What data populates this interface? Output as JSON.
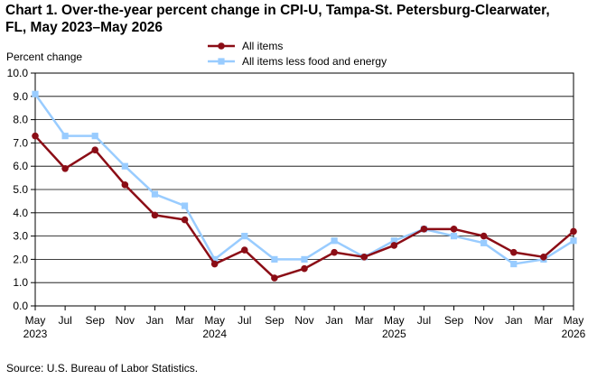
{
  "title_line1": "Chart 1. Over-the-year percent change in CPI-U, Tampa-St. Petersburg-Clearwater,",
  "title_line2": "FL, May 2023–May 2026",
  "source": "Source: U.S. Bureau of Labor Statistics.",
  "chart_data": {
    "type": "line",
    "title": "Chart 1. Over-the-year percent change in CPI-U, Tampa-St. Petersburg-Clearwater, FL, May 2023–May 2026",
    "ylabel": "Percent change",
    "xlabel": "",
    "ylim": [
      0,
      10
    ],
    "yticks": [
      "0.0",
      "1.0",
      "2.0",
      "3.0",
      "4.0",
      "5.0",
      "6.0",
      "7.0",
      "8.0",
      "9.0",
      "10.0"
    ],
    "grid": true,
    "legend_position": "top-center",
    "x": [
      "May 2023",
      "Jul 2023",
      "Sep 2023",
      "Nov 2023",
      "Jan 2024",
      "Mar 2024",
      "May 2024",
      "Jul 2024",
      "Sep 2024",
      "Nov 2024",
      "Jan 2025",
      "Mar 2025",
      "May 2025",
      "Jul 2025",
      "Sep 2025",
      "Nov 2025",
      "Jan 2026",
      "Mar 2026",
      "May 2026"
    ],
    "tick_months": [
      "May",
      "Jul",
      "Sep",
      "Nov",
      "Jan",
      "Mar",
      "May",
      "Jul",
      "Sep",
      "Nov",
      "Jan",
      "Mar",
      "May",
      "Jul",
      "Sep",
      "Nov",
      "Jan",
      "Mar",
      "May"
    ],
    "tick_years": [
      "2023",
      "",
      "",
      "",
      "",
      "",
      "2024",
      "",
      "",
      "",
      "",
      "",
      "2025",
      "",
      "",
      "",
      "",
      "",
      "2026"
    ],
    "series": [
      {
        "name": "All items",
        "color": "#8b0d16",
        "marker": "circle",
        "values": [
          7.3,
          5.9,
          6.7,
          5.2,
          3.9,
          3.7,
          1.8,
          2.4,
          1.2,
          1.6,
          2.3,
          2.1,
          2.6,
          3.3,
          3.3,
          3.0,
          2.3,
          2.1,
          3.2
        ]
      },
      {
        "name": "All items less food and energy",
        "color": "#99ccff",
        "marker": "square",
        "values": [
          9.1,
          7.3,
          7.3,
          6.0,
          4.8,
          4.3,
          2.0,
          3.0,
          2.0,
          2.0,
          2.8,
          2.1,
          2.8,
          3.3,
          3.0,
          2.7,
          1.8,
          2.0,
          2.8
        ]
      }
    ]
  }
}
